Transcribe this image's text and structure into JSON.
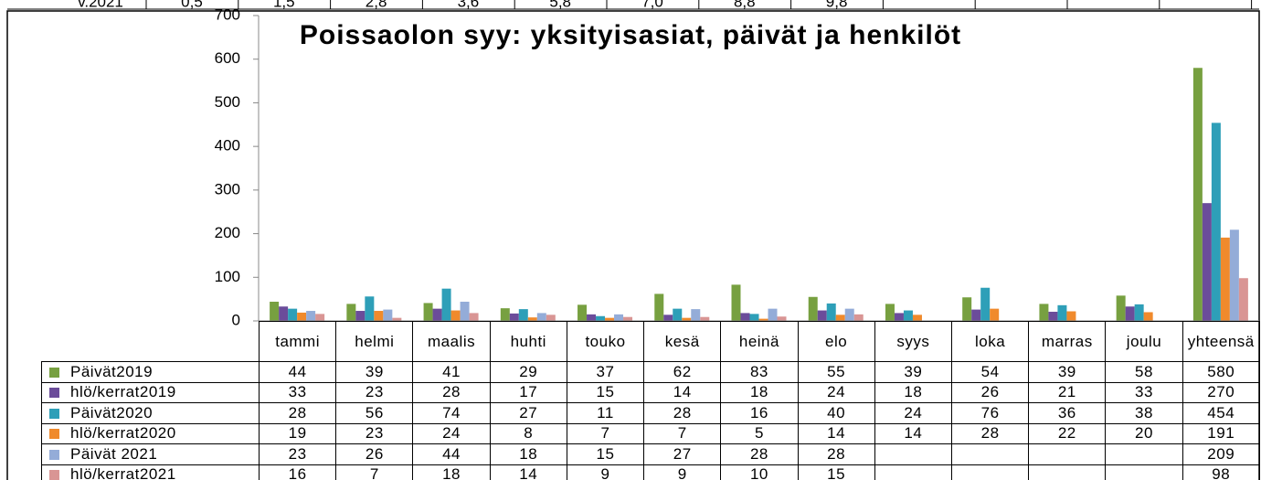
{
  "top_row": {
    "label": "v.2021",
    "values": [
      "0,5",
      "1,5",
      "2,8",
      "3,6",
      "5,8",
      "7,0",
      "8,8",
      "9,8"
    ]
  },
  "chart_data": {
    "type": "bar",
    "title": "Poissaolon syy: yksityisasiat, päivät ja henkilöt",
    "categories": [
      "tammi",
      "helmi",
      "maalis",
      "huhti",
      "touko",
      "kesä",
      "heinä",
      "elo",
      "syys",
      "loka",
      "marras",
      "joulu",
      "yhteensä"
    ],
    "series": [
      {
        "name": "Päivät2019",
        "color": "#77a040",
        "values": [
          44,
          39,
          41,
          29,
          37,
          62,
          83,
          55,
          39,
          54,
          39,
          58,
          580
        ]
      },
      {
        "name": "hlö/kerrat2019",
        "color": "#6b4c9a",
        "values": [
          33,
          23,
          28,
          17,
          15,
          14,
          18,
          24,
          18,
          26,
          21,
          33,
          270
        ]
      },
      {
        "name": "Päivät2020",
        "color": "#2e9fb8",
        "values": [
          28,
          56,
          74,
          27,
          11,
          28,
          16,
          40,
          24,
          76,
          36,
          38,
          454
        ]
      },
      {
        "name": "hlö/kerrat2020",
        "color": "#f08a2c",
        "values": [
          19,
          23,
          24,
          8,
          7,
          7,
          5,
          14,
          14,
          28,
          22,
          20,
          191
        ]
      },
      {
        "name": "Päivät 2021",
        "color": "#94acd8",
        "values": [
          23,
          26,
          44,
          18,
          15,
          27,
          28,
          28,
          null,
          null,
          null,
          null,
          209
        ]
      },
      {
        "name": "hlö/kerrat2021",
        "color": "#d99594",
        "values": [
          16,
          7,
          18,
          14,
          9,
          9,
          10,
          15,
          null,
          null,
          null,
          null,
          98
        ]
      }
    ],
    "ylim": [
      0,
      700
    ],
    "yticks": [
      0,
      100,
      200,
      300,
      400,
      500,
      600,
      700
    ],
    "grid": false
  }
}
